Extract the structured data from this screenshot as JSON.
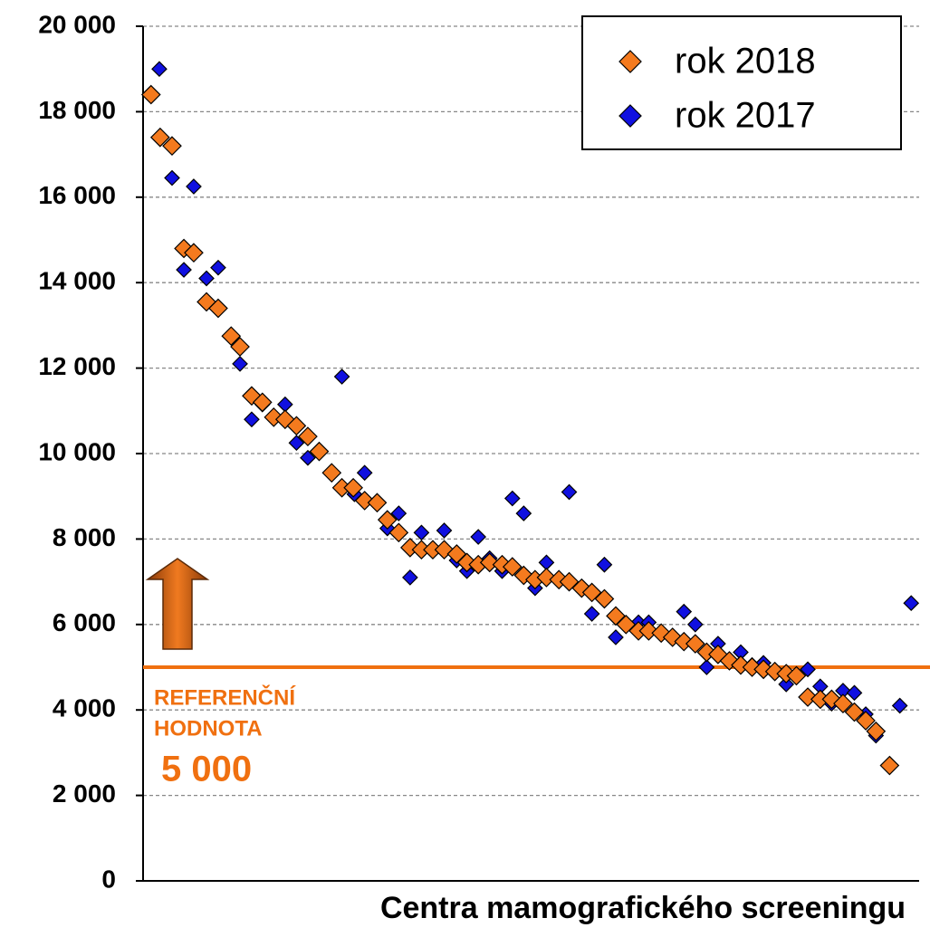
{
  "chart_data": {
    "type": "scatter",
    "x_label": "Centra mamografického screeningu",
    "xlim": [
      0,
      68.3
    ],
    "ylim": [
      0,
      20000
    ],
    "yticks": [
      0,
      {
        "value": 2000,
        "label": "2 000"
      },
      {
        "value": 4000,
        "label": "4 000"
      },
      {
        "value": 6000,
        "label": "6 000"
      },
      {
        "value": 8000,
        "label": "8 000"
      },
      {
        "value": 10000,
        "label": "10 000"
      },
      {
        "value": 12000,
        "label": "12 000"
      },
      {
        "value": 14000,
        "label": "14 000"
      },
      {
        "value": 16000,
        "label": "16 000"
      },
      {
        "value": 18000,
        "label": "18 000"
      },
      {
        "value": 20000,
        "label": "20 000"
      }
    ],
    "grid": true,
    "legend": "upper right",
    "reference": {
      "value": 5000,
      "label_lines": [
        "REFERENČNÍ",
        "HODNOTA"
      ],
      "value_label": "5 000",
      "color": "#f07010"
    },
    "series": [
      {
        "name": "rok 2017",
        "color": "#1010e0",
        "x": [
          1.43,
          2.55,
          4.46,
          3.59,
          5.58,
          6.61,
          8.53,
          9.56,
          10.5,
          12.5,
          13.5,
          14.5,
          17.5,
          18.6,
          19.5,
          21.5,
          22.5,
          23.5,
          24.5,
          26.5,
          27.6,
          28.5,
          29.5,
          30.5,
          31.6,
          32.5,
          33.5,
          34.5,
          35.5,
          37.5,
          39.5,
          40.6,
          41.6,
          43.6,
          44.5,
          47.6,
          48.6,
          49.6,
          50.6,
          52.6,
          53.6,
          54.6,
          55.6,
          56.6,
          58.5,
          59.6,
          60.6,
          61.6,
          62.6,
          63.6,
          64.5,
          66.6,
          67.6
        ],
        "values": [
          19000,
          16450,
          16250,
          14300,
          14100,
          14350,
          12100,
          10800,
          11150,
          11150,
          10250,
          9900,
          11800,
          9050,
          9550,
          8250,
          8600,
          7100,
          8150,
          8200,
          7500,
          7250,
          8050,
          7550,
          7250,
          8950,
          8600,
          6850,
          7450,
          9100,
          6250,
          7400,
          5700,
          6050,
          6050,
          6300,
          6000,
          5000,
          5550,
          5350,
          5050,
          5100,
          4900,
          4600,
          4950,
          4550,
          4150,
          4450,
          4400,
          3900,
          3400,
          4100,
          6500
        ]
      },
      {
        "name": "rok 2018",
        "color": "#f47a1e",
        "x": [
          0.7,
          1.5,
          2.55,
          3.59,
          4.46,
          5.58,
          6.61,
          7.75,
          8.53,
          9.56,
          10.5,
          11.5,
          12.5,
          13.5,
          14.5,
          15.5,
          16.6,
          17.5,
          18.5,
          19.5,
          20.6,
          21.5,
          22.5,
          23.5,
          24.5,
          25.5,
          26.5,
          27.6,
          28.5,
          29.5,
          30.5,
          31.6,
          32.5,
          33.5,
          34.5,
          35.5,
          36.6,
          37.5,
          38.6,
          39.5,
          40.6,
          41.6,
          42.5,
          43.6,
          44.5,
          45.6,
          46.6,
          47.6,
          48.6,
          49.6,
          50.6,
          51.6,
          52.6,
          53.6,
          54.6,
          55.6,
          56.6,
          57.5,
          58.5,
          59.6,
          60.6,
          61.6,
          62.6,
          63.6,
          64.5,
          65.7
        ],
        "values": [
          18400,
          17400,
          17200,
          14800,
          14700,
          13550,
          13400,
          12750,
          12500,
          11350,
          11200,
          10850,
          10800,
          10650,
          10400,
          10050,
          9550,
          9200,
          9200,
          8900,
          8850,
          8450,
          8150,
          7800,
          7750,
          7750,
          7750,
          7650,
          7450,
          7400,
          7450,
          7400,
          7350,
          7150,
          7050,
          7100,
          7050,
          7000,
          6850,
          6750,
          6600,
          6200,
          6000,
          5850,
          5850,
          5800,
          5700,
          5600,
          5550,
          5350,
          5300,
          5150,
          5050,
          5000,
          4950,
          4900,
          4850,
          4800,
          4300,
          4250,
          4250,
          4150,
          3950,
          3750,
          3500,
          2700
        ]
      }
    ]
  }
}
